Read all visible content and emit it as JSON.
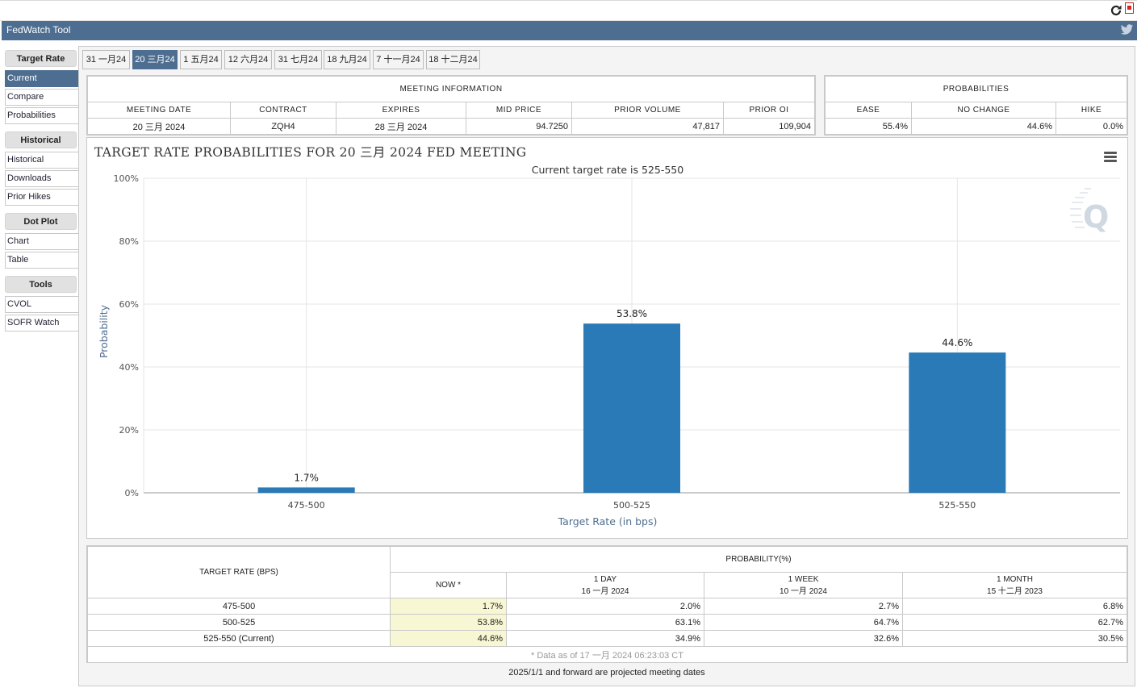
{
  "app": {
    "title": "FedWatch Tool"
  },
  "sidebar": {
    "groups": [
      {
        "heading": "Target Rate",
        "items": [
          {
            "label": "Current"
          },
          {
            "label": "Compare"
          },
          {
            "label": "Probabilities"
          }
        ]
      },
      {
        "heading": "Historical",
        "items": [
          {
            "label": "Historical"
          },
          {
            "label": "Downloads"
          },
          {
            "label": "Prior Hikes"
          }
        ]
      },
      {
        "heading": "Dot Plot",
        "items": [
          {
            "label": "Chart"
          },
          {
            "label": "Table"
          }
        ]
      },
      {
        "heading": "Tools",
        "items": [
          {
            "label": "CVOL"
          },
          {
            "label": "SOFR Watch"
          }
        ]
      }
    ],
    "active": "Current"
  },
  "tabs": [
    {
      "label": "31 一月24"
    },
    {
      "label": "20 三月24"
    },
    {
      "label": "1 五月24"
    },
    {
      "label": "12 六月24"
    },
    {
      "label": "31 七月24"
    },
    {
      "label": "18 九月24"
    },
    {
      "label": "7 十一月24"
    },
    {
      "label": "18 十二月24"
    }
  ],
  "active_tab": "20 三月24",
  "meeting_info": {
    "heading": "MEETING INFORMATION",
    "columns": [
      "MEETING DATE",
      "CONTRACT",
      "EXPIRES",
      "MID PRICE",
      "PRIOR VOLUME",
      "PRIOR OI"
    ],
    "values": [
      "20 三月 2024",
      "ZQH4",
      "28 三月 2024",
      "94.7250",
      "47,817",
      "109,904"
    ]
  },
  "probabilities": {
    "heading": "PROBABILITIES",
    "columns": [
      "EASE",
      "NO CHANGE",
      "HIKE"
    ],
    "values": [
      "55.4%",
      "44.6%",
      "0.0%"
    ]
  },
  "chart_data": {
    "type": "bar",
    "title": "TARGET RATE PROBABILITIES FOR 20 三月 2024 FED MEETING",
    "subtitle": "Current target rate is 525-550",
    "categories": [
      "475-500",
      "500-525",
      "525-550"
    ],
    "values": [
      1.7,
      53.8,
      44.6
    ],
    "data_labels": [
      "1.7%",
      "53.8%",
      "44.6%"
    ],
    "xlabel": "Target Rate (in bps)",
    "ylabel": "Probability",
    "ylim": [
      0,
      100
    ],
    "yticks": [
      "0%",
      "20%",
      "40%",
      "60%",
      "80%",
      "100%"
    ],
    "grid": true,
    "bar_color": "#2a7ab8"
  },
  "prob_table": {
    "col_target": "TARGET RATE (BPS)",
    "col_prob": "PROBABILITY(%)",
    "sub_cols": [
      {
        "line1": "NOW *",
        "line2": ""
      },
      {
        "line1": "1 DAY",
        "line2": "16 一月 2024"
      },
      {
        "line1": "1 WEEK",
        "line2": "10 一月 2024"
      },
      {
        "line1": "1 MONTH",
        "line2": "15 十二月 2023"
      }
    ],
    "rows": [
      {
        "rate": "475-500",
        "vals": [
          "1.7%",
          "2.0%",
          "2.7%",
          "6.8%"
        ]
      },
      {
        "rate": "500-525",
        "vals": [
          "53.8%",
          "63.1%",
          "64.7%",
          "62.7%"
        ]
      },
      {
        "rate": "525-550 (Current)",
        "vals": [
          "44.6%",
          "34.9%",
          "32.6%",
          "30.5%"
        ]
      }
    ],
    "footnote": "* Data as of 17 一月 2024 06:23:03 CT"
  },
  "forward_note": "2025/1/1 and forward are projected meeting dates",
  "colors": {
    "header": "#4e6e91",
    "bar": "#2a7ab8",
    "now_highlight": "#f7f7d3"
  }
}
